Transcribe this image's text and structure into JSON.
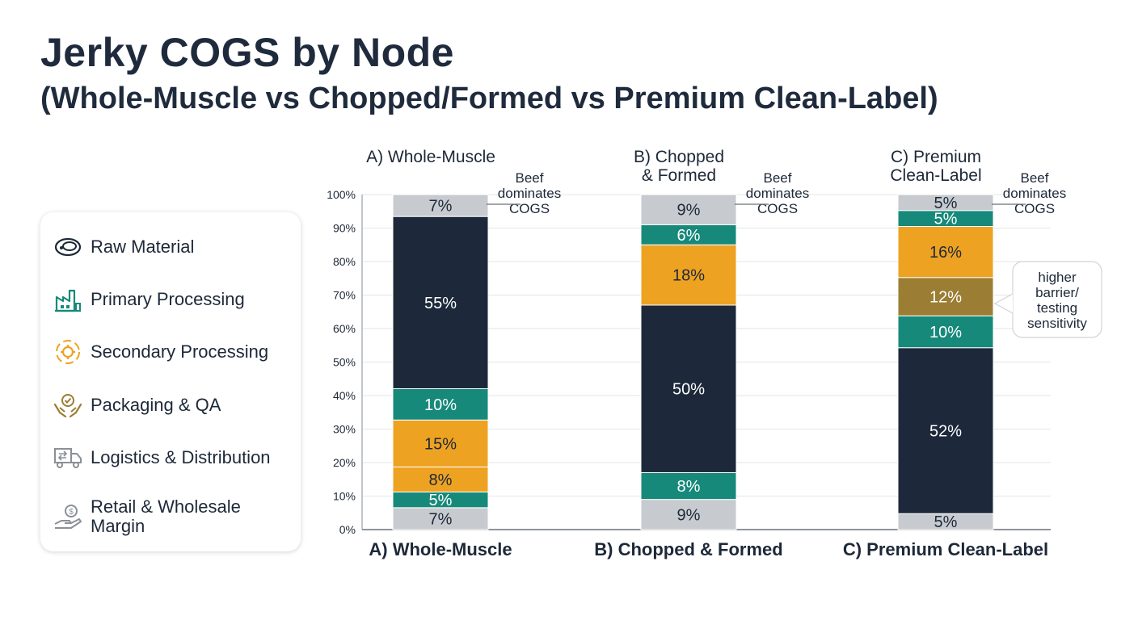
{
  "title": "Jerky COGS by Node",
  "subtitle": "(Whole-Muscle vs Chopped/Formed vs Premium Clean-Label)",
  "legend": {
    "items": [
      {
        "label": "Raw Material",
        "icon": "steak-icon"
      },
      {
        "label": "Primary Processing",
        "icon": "factory-icon"
      },
      {
        "label": "Secondary Processing",
        "icon": "gear-cycle-icon"
      },
      {
        "label": "Packaging & QA",
        "icon": "hands-check-icon"
      },
      {
        "label": "Logistics & Distribution",
        "icon": "truck-icon"
      },
      {
        "label": "Retail & Wholesale Margin",
        "icon": "hand-coin-icon"
      }
    ]
  },
  "colors": {
    "navy": "#1d293b",
    "teal": "#17897a",
    "orange": "#eea222",
    "olive": "#9b7d34",
    "gray": "#c7cbcf"
  },
  "chart_data": {
    "type": "bar",
    "stacked": true,
    "ylim": [
      0,
      100
    ],
    "yticks": [
      0,
      10,
      20,
      30,
      40,
      50,
      60,
      70,
      80,
      90,
      100
    ],
    "grid": true,
    "columns": [
      {
        "top_label": "A) Whole-Muscle",
        "bottom_label": "A) Whole-Muscle",
        "annotation": "Beef dominates COGS",
        "segments": [
          {
            "value": 7,
            "label": "7%",
            "color": "gray"
          },
          {
            "value": 5,
            "label": "5%",
            "color": "teal"
          },
          {
            "value": 8,
            "label": "8%",
            "color": "orange"
          },
          {
            "value": 15,
            "label": "15%",
            "color": "orange"
          },
          {
            "value": 10,
            "label": "10%",
            "color": "teal"
          },
          {
            "value": 55,
            "label": "55%",
            "color": "navy"
          },
          {
            "value": 7,
            "label": "7%",
            "color": "gray"
          }
        ]
      },
      {
        "top_label": "B) Chopped & Formed",
        "bottom_label": "B) Chopped & Formed",
        "annotation": "Beef dominates COGS",
        "segments": [
          {
            "value": 9,
            "label": "9%",
            "color": "gray"
          },
          {
            "value": 8,
            "label": "8%",
            "color": "teal"
          },
          {
            "value": 50,
            "label": "50%",
            "color": "navy"
          },
          {
            "value": 18,
            "label": "18%",
            "color": "orange"
          },
          {
            "value": 6,
            "label": "6%",
            "color": "teal"
          },
          {
            "value": 9,
            "label": "9%",
            "color": "gray"
          }
        ]
      },
      {
        "top_label": "C) Premium Clean-Label",
        "bottom_label": "C) Premium Clean-Label",
        "annotation": "Beef dominates COGS",
        "callout": "higher barrier/ testing sensitivity",
        "segments": [
          {
            "value": 5,
            "label": "5%",
            "color": "gray"
          },
          {
            "value": 52,
            "label": "52%",
            "color": "navy"
          },
          {
            "value": 10,
            "label": "10%",
            "color": "teal"
          },
          {
            "value": 12,
            "label": "12%",
            "color": "olive"
          },
          {
            "value": 16,
            "label": "16%",
            "color": "orange"
          },
          {
            "value": 5,
            "label": "5%",
            "color": "teal"
          },
          {
            "value": 5,
            "label": "5%",
            "color": "gray"
          }
        ]
      }
    ]
  }
}
